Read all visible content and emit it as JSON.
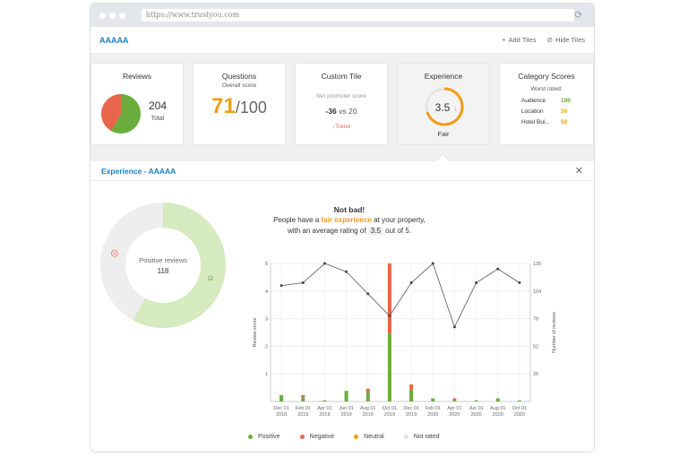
{
  "browser": {
    "url": "https://www.trustyou.com"
  },
  "header": {
    "brand": "AAAAA",
    "add_tiles": "Add Tiles",
    "hide_tiles": "Hide Tiles"
  },
  "tiles": {
    "reviews": {
      "title": "Reviews",
      "count": "204",
      "count_label": "Total",
      "positive_share": 0.58,
      "negative_share": 0.42
    },
    "questions": {
      "title": "Questions",
      "subtitle": "Overall score",
      "score": "71",
      "max": "/100"
    },
    "custom": {
      "title": "Custom Tile",
      "subtitle": "Net promoter score",
      "value": "-36",
      "vs": "vs 20",
      "trend": "Trend"
    },
    "experience": {
      "title": "Experience",
      "score": "3.5",
      "label": "Fair",
      "fill": 0.7
    },
    "category": {
      "title": "Category Scores",
      "subtitle": "Worst rated:",
      "rows": [
        {
          "name": "Audience",
          "value": "100",
          "color": "#5ea82e"
        },
        {
          "name": "Location",
          "value": "50",
          "color": "#f39c12"
        },
        {
          "name": "Hotel Bui...",
          "value": "50",
          "color": "#f39c12"
        }
      ]
    }
  },
  "panel": {
    "title": "Experience - AAAAA",
    "donut": {
      "label": "Positive reviews",
      "value": "118",
      "positive_share": 0.58
    },
    "summary": {
      "heading": "Not bad!",
      "line1_pre": "People have a ",
      "line1_hl": "fair experience",
      "line1_post": " at your property,",
      "line2_pre": "with an average rating of ",
      "line2_val": "3.5",
      "line2_post": " out of 5."
    }
  },
  "chart_data": {
    "type": "bar",
    "categories": [
      "Dec 01 2018",
      "Feb 01 2019",
      "Apr 01 2019",
      "Jun 01 2019",
      "Aug 01 2019",
      "Oct 01 2019",
      "Dec 01 2019",
      "Feb 01 2020",
      "Apr 01 2020",
      "Jun 01 2020",
      "Aug 01 2020",
      "Oct 01 2020"
    ],
    "series": [
      {
        "name": "Positive",
        "values": [
          5,
          4,
          1,
          10,
          9,
          64,
          11,
          3,
          1,
          1,
          3,
          1
        ]
      },
      {
        "name": "Negative",
        "values": [
          1,
          2,
          0,
          0,
          3,
          66,
          5,
          0,
          2,
          0,
          0,
          0
        ]
      },
      {
        "name": "Neutral",
        "values": [
          0,
          0,
          0,
          0,
          0,
          0,
          0,
          0,
          0,
          0,
          0,
          0
        ]
      },
      {
        "name": "Not rated",
        "values": [
          0,
          0,
          0,
          0,
          0,
          0,
          0,
          0,
          0,
          0,
          0,
          0
        ]
      }
    ],
    "line": [
      4.2,
      4.3,
      5.0,
      4.7,
      3.9,
      3.1,
      4.3,
      5.0,
      2.7,
      4.3,
      4.8,
      4.3
    ],
    "ylabel": "Review score",
    "y2label": "Number of reviews",
    "ylim": [
      0,
      5
    ],
    "y2lim": [
      0,
      130
    ],
    "yticks": [
      "1",
      "2",
      "3",
      "4",
      "5"
    ],
    "y2ticks": [
      "26",
      "52",
      "78",
      "104",
      "130"
    ],
    "colors": {
      "Positive": "#6aad3d",
      "Negative": "#e8644a",
      "Neutral": "#f39c12",
      "Not rated": "#e8e8e8",
      "line": "#666666"
    },
    "legend": "bottom"
  }
}
